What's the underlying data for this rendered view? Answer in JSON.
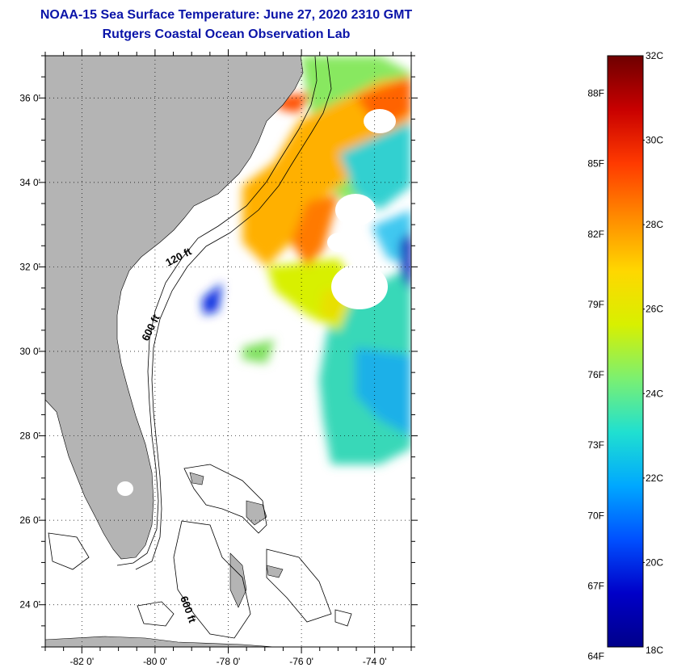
{
  "title": {
    "line1": "NOAA-15 Sea Surface Temperature:  June 27, 2020 2310 GMT",
    "line2": "Rutgers Coastal Ocean Observation Lab"
  },
  "map": {
    "lon_range": [
      -83,
      -73
    ],
    "lat_range": [
      23,
      37
    ],
    "x_ticks": [
      {
        "value": -82,
        "label": "-82 0'"
      },
      {
        "value": -80,
        "label": "-80 0'"
      },
      {
        "value": -78,
        "label": "-78 0'"
      },
      {
        "value": -76,
        "label": "-76 0'"
      },
      {
        "value": -74,
        "label": "-74 0'"
      }
    ],
    "y_ticks": [
      {
        "value": 36,
        "label": "36 0'"
      },
      {
        "value": 34,
        "label": "34 0'"
      },
      {
        "value": 32,
        "label": "32 0'"
      },
      {
        "value": 30,
        "label": "30 0'"
      },
      {
        "value": 28,
        "label": "28 0'"
      },
      {
        "value": 26,
        "label": "26 0'"
      },
      {
        "value": 24,
        "label": "24 0'"
      }
    ],
    "contour_labels": {
      "c120_upper": "120 ft",
      "c600_upper": "600 ft",
      "c600_lower": "600 ft"
    },
    "colors": {
      "land": "#b4b4b4",
      "ocean_nodata": "#ffffff",
      "grid": "#000000"
    }
  },
  "colorbar": {
    "range_c": [
      18,
      32
    ],
    "left_labels_f": [
      "88F",
      "85F",
      "82F",
      "79F",
      "76F",
      "73F",
      "70F",
      "67F",
      "64F"
    ],
    "right_labels_c": [
      "32C",
      "30C",
      "28C",
      "26C",
      "24C",
      "22C",
      "20C",
      "18C"
    ],
    "gradient": [
      "#6e0000",
      "#c80000",
      "#ff3a00",
      "#ff8a00",
      "#ffd700",
      "#d8f000",
      "#7cf070",
      "#20e0d0",
      "#00a8ff",
      "#0050ff",
      "#0000c8",
      "#00008a"
    ]
  }
}
